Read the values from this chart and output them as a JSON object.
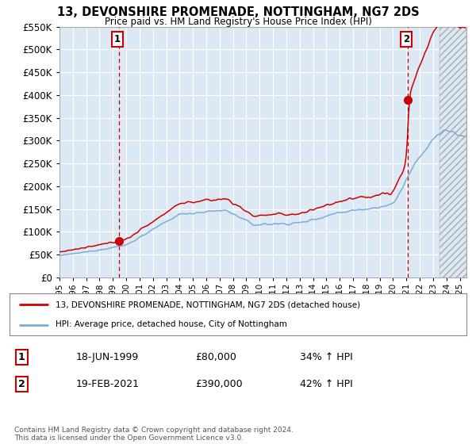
{
  "title": "13, DEVONSHIRE PROMENADE, NOTTINGHAM, NG7 2DS",
  "subtitle": "Price paid vs. HM Land Registry's House Price Index (HPI)",
  "legend_line1": "13, DEVONSHIRE PROMENADE, NOTTINGHAM, NG7 2DS (detached house)",
  "legend_line2": "HPI: Average price, detached house, City of Nottingham",
  "annotation1_label": "1",
  "annotation1_date": "18-JUN-1999",
  "annotation1_price": "£80,000",
  "annotation1_hpi": "34% ↑ HPI",
  "annotation2_label": "2",
  "annotation2_date": "19-FEB-2021",
  "annotation2_price": "£390,000",
  "annotation2_hpi": "42% ↑ HPI",
  "footer": "Contains HM Land Registry data © Crown copyright and database right 2024.\nThis data is licensed under the Open Government Licence v3.0.",
  "ylim": [
    0,
    550000
  ],
  "yticks": [
    0,
    50000,
    100000,
    150000,
    200000,
    250000,
    300000,
    350000,
    400000,
    450000,
    500000,
    550000
  ],
  "background_color": "#ffffff",
  "plot_bg_color": "#dce9f5",
  "grid_color": "#ffffff",
  "red_line_color": "#cc0000",
  "blue_line_color": "#7aadd4",
  "sale1_x": 1999.47,
  "sale1_y": 80000,
  "sale2_x": 2021.12,
  "sale2_y": 390000,
  "vline1_x": 1999.47,
  "vline2_x": 2021.12,
  "xmin": 1995.0,
  "xmax": 2025.5,
  "hpi_premium_1": 1.34,
  "hpi_premium_2": 1.42
}
